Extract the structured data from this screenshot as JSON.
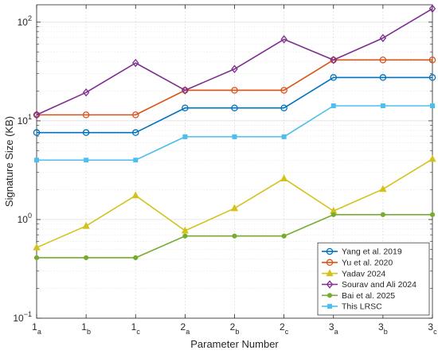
{
  "chart_data": {
    "type": "line",
    "xlabel": "Parameter Number",
    "ylabel": "Signature Size (KB)",
    "yscale": "log",
    "ylim": [
      0.1,
      150
    ],
    "y_ticks": [
      {
        "value": 0.1,
        "base": "10",
        "exp": "−1"
      },
      {
        "value": 1,
        "base": "10",
        "exp": "0"
      },
      {
        "value": 10,
        "base": "10",
        "exp": "1"
      },
      {
        "value": 100,
        "base": "10",
        "exp": "2"
      }
    ],
    "categories": [
      {
        "main": "1",
        "sub": "a"
      },
      {
        "main": "1",
        "sub": "b"
      },
      {
        "main": "1",
        "sub": "c"
      },
      {
        "main": "2",
        "sub": "a"
      },
      {
        "main": "2",
        "sub": "b"
      },
      {
        "main": "2",
        "sub": "c"
      },
      {
        "main": "3",
        "sub": "a"
      },
      {
        "main": "3",
        "sub": "b"
      },
      {
        "main": "3",
        "sub": "c"
      }
    ],
    "grid": true,
    "legend_position": "bottom-right",
    "series": [
      {
        "name": "Yang et al. 2019",
        "color": "#0072BD",
        "marker": "circle",
        "values": [
          7.6,
          7.6,
          7.6,
          13.5,
          13.5,
          13.5,
          27.5,
          27.5,
          27.5
        ]
      },
      {
        "name": "Yu et al. 2020",
        "color": "#D95319",
        "marker": "circle",
        "values": [
          11.5,
          11.5,
          11.5,
          20.4,
          20.4,
          20.4,
          41.4,
          41.4,
          41.4
        ]
      },
      {
        "name": "Yadav 2024",
        "color": "#D4C21C",
        "marker": "triangle",
        "values": [
          0.52,
          0.86,
          1.75,
          0.77,
          1.3,
          2.6,
          1.22,
          2.03,
          4.1
        ]
      },
      {
        "name": "Sourav and Ali 2024",
        "color": "#7E2F8E",
        "marker": "diamond",
        "values": [
          11.5,
          19.4,
          38.6,
          20.4,
          33.5,
          67.0,
          41.4,
          69.0,
          137.0
        ]
      },
      {
        "name": "Bai et al. 2025",
        "color": "#77AC30",
        "marker": "dot",
        "values": [
          0.41,
          0.41,
          0.41,
          0.68,
          0.68,
          0.68,
          1.12,
          1.12,
          1.12
        ]
      },
      {
        "name": "This LRSC",
        "color": "#4DBEEE",
        "marker": "square",
        "values": [
          4.0,
          4.0,
          4.0,
          6.9,
          6.9,
          6.9,
          14.2,
          14.2,
          14.2
        ]
      }
    ]
  }
}
